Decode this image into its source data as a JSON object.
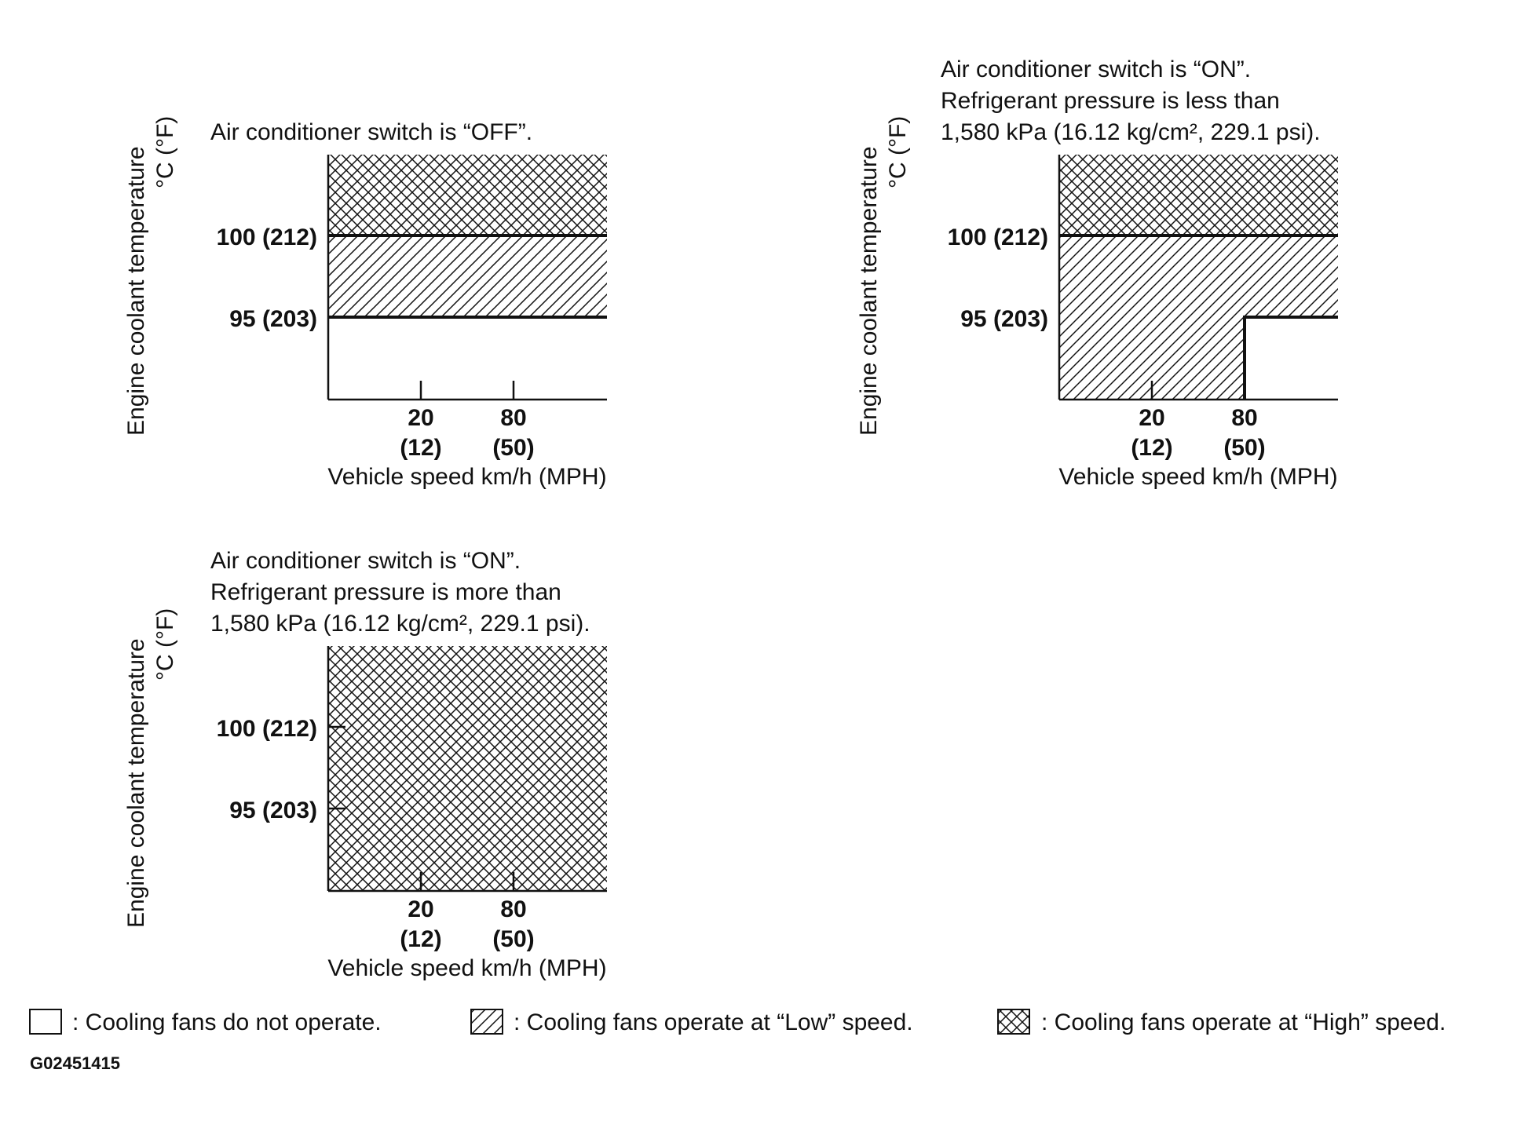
{
  "y_axis_label": "Engine coolant temperature",
  "y_axis_unit": "°C (°F)",
  "x_axis_label": "Vehicle speed km/h (MPH)",
  "y_ticks": [
    "100 (212)",
    "95 (203)"
  ],
  "x_ticks": [
    {
      "top": "20",
      "bottom": "(12)"
    },
    {
      "top": "80",
      "bottom": "(50)"
    }
  ],
  "panels": [
    {
      "condition_lines": [
        "Air conditioner switch is “OFF”."
      ],
      "zones": {
        "high": "above 100 °C",
        "low": "95–100 °C",
        "off": "below 95 °C"
      }
    },
    {
      "condition_lines": [
        "Air conditioner switch is “ON”.",
        "Refrigerant pressure is less than",
        "1,580 kPa (16.12 kg/cm², 229.1 psi)."
      ],
      "zones": {
        "high": "above 100 °C",
        "low": "below 100 °C when speed < 80 km/h; 95–100 °C when speed ≥ 80 km/h",
        "off": "below 95 °C and speed ≥ 80 km/h"
      }
    },
    {
      "condition_lines": [
        "Air conditioner switch is “ON”.",
        "Refrigerant pressure is more than",
        "1,580 kPa (16.12 kg/cm², 229.1 psi)."
      ],
      "zones": {
        "high": "all temperatures and speeds"
      }
    }
  ],
  "legend": [
    {
      "pattern": "none",
      "text": ": Cooling fans do not operate."
    },
    {
      "pattern": "hatch",
      "text": ": Cooling fans operate at “Low” speed."
    },
    {
      "pattern": "crosshatch",
      "text": ": Cooling fans operate at “High” speed."
    }
  ],
  "figure_code": "G02451415"
}
